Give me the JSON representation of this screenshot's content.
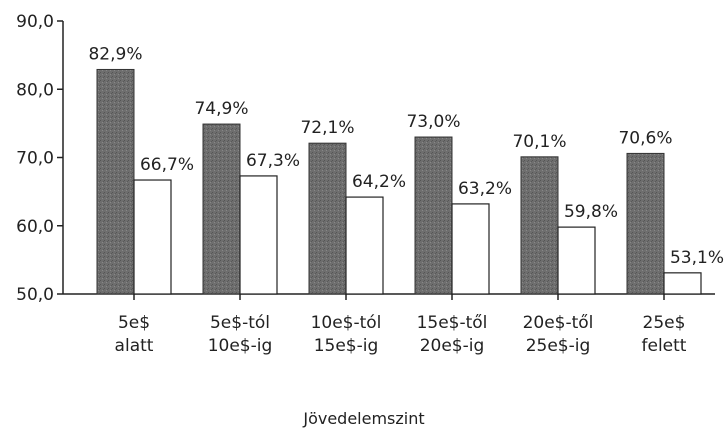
{
  "chart_data": {
    "type": "bar",
    "title": "",
    "xlabel": "Jövedelemszint",
    "ylabel": "",
    "ylim": [
      50,
      90
    ],
    "yticks": [
      "50,0",
      "60,0",
      "70,0",
      "80,0",
      "90,0"
    ],
    "ytick_values": [
      50,
      60,
      70,
      80,
      90
    ],
    "grid": false,
    "legend": "none",
    "categories": [
      [
        "5e$",
        "alatt"
      ],
      [
        "5e$-tól",
        "10e$-ig"
      ],
      [
        "10e$-tól",
        "15e$-ig"
      ],
      [
        "15e$-től",
        "20e$-ig"
      ],
      [
        "20e$-től",
        "25e$-ig"
      ],
      [
        "25e$",
        "felett"
      ]
    ],
    "series": [
      {
        "color": "#6e6e6e",
        "values": [
          82.9,
          74.9,
          72.1,
          73.0,
          70.1,
          70.6
        ],
        "labels": [
          "82,9%",
          "74,9%",
          "72,1%",
          "73,0%",
          "70,1%",
          "70,6%"
        ]
      },
      {
        "color": "#ffffff",
        "values": [
          66.7,
          67.3,
          64.2,
          63.2,
          59.8,
          53.1
        ],
        "labels": [
          "66,7%",
          "67,3%",
          "64,2%",
          "63,2%",
          "59,8%",
          "53,1%"
        ]
      }
    ]
  }
}
